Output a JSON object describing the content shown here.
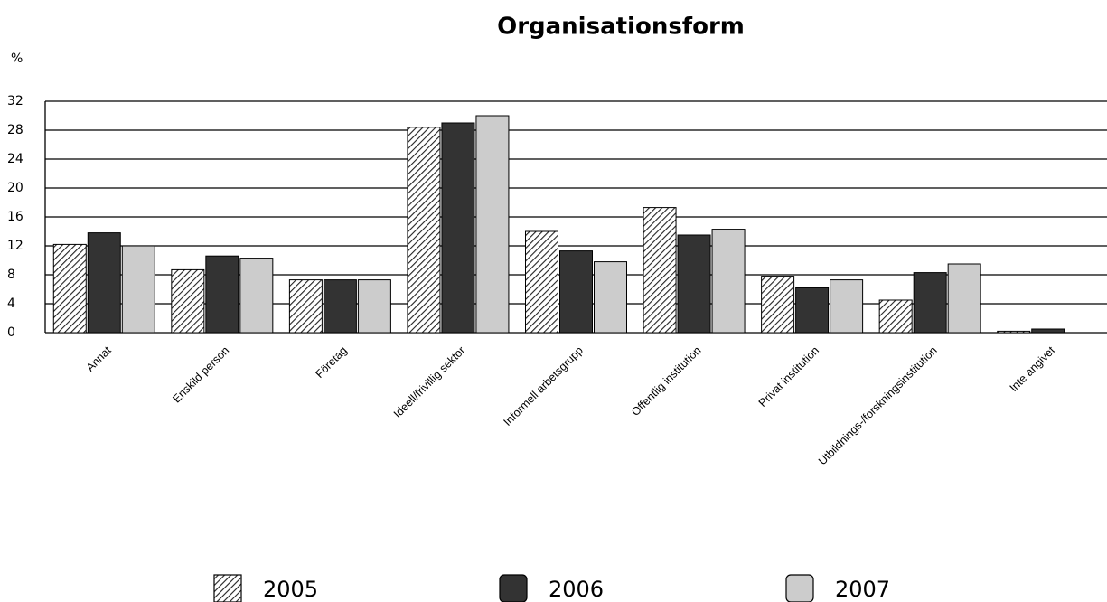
{
  "chart_data": {
    "type": "bar",
    "title": "Organisationsform",
    "y_label": "%",
    "categories": [
      "Annat",
      "Enskild person",
      "Företag",
      "Ideell/frivillig sektor",
      "Informell arbetsgrupp",
      "Offentlig institution",
      "Privat institution",
      "Utbildnings-/forskningsinstitution",
      "Inte angivet"
    ],
    "series": [
      {
        "name": "2005",
        "color": "#ffffff",
        "pattern": "hatched",
        "values": [
          12.2,
          8.7,
          7.3,
          28.4,
          14.0,
          17.3,
          7.8,
          4.5,
          0.2
        ]
      },
      {
        "name": "2006",
        "color": "#333333",
        "values": [
          13.8,
          10.6,
          7.3,
          29.0,
          11.3,
          13.5,
          6.2,
          8.3,
          0.5
        ]
      },
      {
        "name": "2007",
        "color": "#cccccc",
        "values": [
          12.0,
          10.3,
          7.3,
          30.0,
          9.8,
          14.3,
          7.3,
          9.5,
          0
        ]
      }
    ],
    "ylim": [
      0,
      32
    ],
    "yticks": [
      0,
      4,
      8,
      12,
      16,
      20,
      24,
      28,
      32
    ],
    "grid": true,
    "legend": "bottom"
  }
}
